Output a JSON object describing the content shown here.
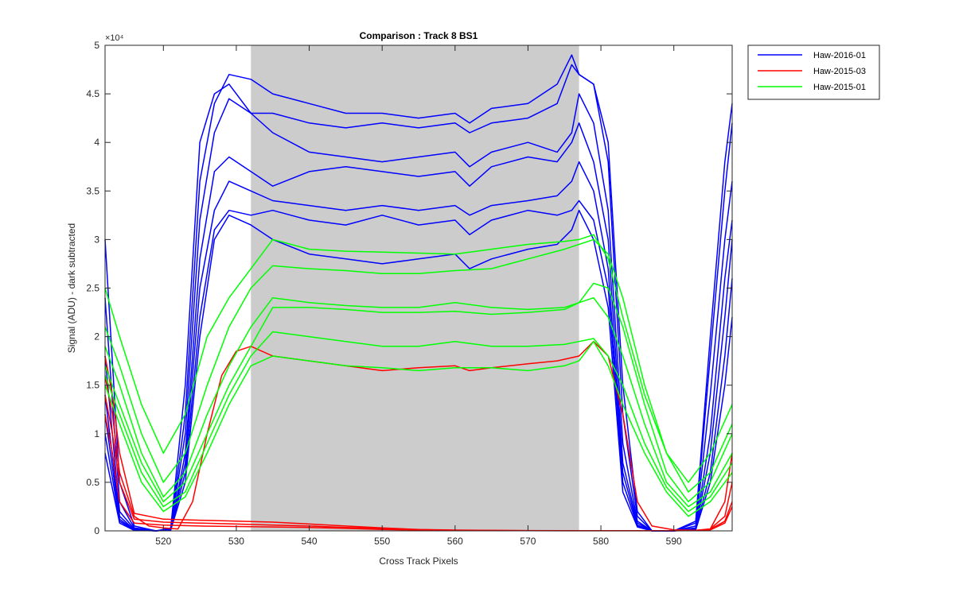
{
  "chart_data": {
    "type": "line",
    "title": "Comparison : Track 8  BS1",
    "xlabel": "Cross Track Pixels",
    "ylabel": "Signal (ADU) - dark subtracted",
    "y_exponent_label": "×10⁴",
    "xlim": [
      512,
      598
    ],
    "ylim": [
      0,
      50000
    ],
    "x_ticks": [
      520,
      530,
      540,
      550,
      560,
      570,
      580,
      590
    ],
    "y_ticks": [
      {
        "value": 0,
        "label": "0"
      },
      {
        "value": 5000,
        "label": "0.5"
      },
      {
        "value": 10000,
        "label": "1"
      },
      {
        "value": 15000,
        "label": "1.5"
      },
      {
        "value": 20000,
        "label": "2"
      },
      {
        "value": 25000,
        "label": "2.5"
      },
      {
        "value": 30000,
        "label": "3"
      },
      {
        "value": 35000,
        "label": "3.5"
      },
      {
        "value": 40000,
        "label": "4"
      },
      {
        "value": 45000,
        "label": "4.5"
      },
      {
        "value": 50000,
        "label": "5"
      }
    ],
    "shaded_region": {
      "x0": 532,
      "x1": 577,
      "color": "#cccccc"
    },
    "legend_position": "outside-top-right",
    "series": [
      {
        "name": "Haw-2016-01",
        "color": "#0000ff",
        "x": [
          512,
          514,
          516,
          519,
          521,
          523,
          525,
          527,
          529,
          532,
          535,
          540,
          545,
          550,
          555,
          560,
          562,
          565,
          570,
          574,
          576,
          577,
          579,
          581,
          583,
          585,
          587,
          590,
          593,
          595,
          597,
          598
        ],
        "y": [
          30000,
          5000,
          500,
          0,
          300,
          15000,
          40000,
          45000,
          46000,
          43000,
          43000,
          42000,
          41500,
          42000,
          41500,
          42000,
          41000,
          42000,
          42500,
          44000,
          48000,
          47000,
          46000,
          40000,
          15000,
          2000,
          0,
          0,
          1000,
          20000,
          38000,
          44000
        ]
      },
      {
        "name": "",
        "color": "#0000ff",
        "x": [
          512,
          514,
          516,
          519,
          521,
          523,
          525,
          527,
          529,
          532,
          535,
          540,
          545,
          550,
          555,
          560,
          562,
          565,
          570,
          574,
          576,
          577,
          579,
          581,
          583,
          585,
          587,
          590,
          593,
          595,
          597,
          598
        ],
        "y": [
          24000,
          3000,
          300,
          0,
          200,
          12000,
          36000,
          44000,
          47000,
          46500,
          45000,
          44000,
          43000,
          43000,
          42500,
          43000,
          42000,
          43500,
          44000,
          46000,
          49000,
          47000,
          46000,
          38000,
          12000,
          1500,
          0,
          0,
          800,
          18000,
          35000,
          42000
        ]
      },
      {
        "name": "",
        "color": "#0000ff",
        "x": [
          512,
          514,
          516,
          519,
          521,
          523,
          525,
          527,
          529,
          532,
          535,
          540,
          545,
          550,
          555,
          560,
          562,
          565,
          570,
          574,
          576,
          577,
          579,
          581,
          583,
          585,
          587,
          590,
          593,
          595,
          597,
          598
        ],
        "y": [
          18000,
          2000,
          200,
          0,
          150,
          10000,
          32000,
          41000,
          44500,
          43000,
          41000,
          39000,
          38500,
          38000,
          38500,
          39000,
          37500,
          39000,
          40000,
          39000,
          41000,
          45000,
          42000,
          33000,
          9000,
          1000,
          0,
          0,
          500,
          14000,
          30000,
          36000
        ]
      },
      {
        "name": "",
        "color": "#0000ff",
        "x": [
          512,
          514,
          516,
          519,
          521,
          523,
          525,
          527,
          529,
          532,
          535,
          540,
          545,
          550,
          555,
          560,
          562,
          565,
          570,
          574,
          576,
          577,
          579,
          581,
          583,
          585,
          587,
          590,
          593,
          595,
          597,
          598
        ],
        "y": [
          14000,
          1500,
          100,
          0,
          100,
          8000,
          28000,
          37000,
          38500,
          37000,
          35500,
          37000,
          37500,
          37000,
          36500,
          37000,
          35500,
          37500,
          38500,
          38000,
          40000,
          42000,
          38000,
          30000,
          7000,
          800,
          0,
          0,
          300,
          10000,
          26000,
          32000
        ]
      },
      {
        "name": "",
        "color": "#0000ff",
        "x": [
          512,
          514,
          516,
          519,
          521,
          523,
          525,
          527,
          529,
          532,
          535,
          540,
          545,
          550,
          555,
          560,
          562,
          565,
          570,
          574,
          576,
          577,
          579,
          581,
          583,
          585,
          587,
          590,
          593,
          595,
          597,
          598
        ],
        "y": [
          12000,
          1200,
          100,
          0,
          100,
          7000,
          25000,
          33000,
          36000,
          35000,
          34000,
          33500,
          33000,
          33500,
          33000,
          33500,
          32500,
          33500,
          34000,
          34500,
          36000,
          38000,
          35000,
          27000,
          6000,
          600,
          0,
          0,
          200,
          8000,
          22000,
          30000
        ]
      },
      {
        "name": "",
        "color": "#0000ff",
        "x": [
          512,
          514,
          516,
          519,
          521,
          523,
          525,
          527,
          529,
          532,
          535,
          540,
          545,
          550,
          555,
          560,
          562,
          565,
          570,
          574,
          576,
          577,
          579,
          581,
          583,
          585,
          587,
          590,
          593,
          595,
          597,
          598
        ],
        "y": [
          10000,
          1000,
          100,
          0,
          100,
          6000,
          22000,
          31000,
          33000,
          32500,
          33000,
          32000,
          31500,
          32500,
          31500,
          32000,
          30500,
          32000,
          33000,
          32500,
          33000,
          34000,
          32000,
          25000,
          5000,
          500,
          0,
          0,
          200,
          6000,
          18000,
          26000
        ]
      },
      {
        "name": "",
        "color": "#0000ff",
        "x": [
          512,
          514,
          516,
          519,
          521,
          523,
          525,
          527,
          529,
          532,
          535,
          540,
          545,
          550,
          555,
          560,
          562,
          565,
          570,
          574,
          576,
          577,
          579,
          581,
          583,
          585,
          587,
          590,
          593,
          595,
          597,
          598
        ],
        "y": [
          8000,
          800,
          50,
          0,
          80,
          5000,
          20000,
          30000,
          32500,
          31500,
          30000,
          28500,
          28000,
          27500,
          28000,
          28500,
          27000,
          28000,
          29000,
          29500,
          31000,
          33000,
          30000,
          23000,
          4000,
          400,
          0,
          0,
          100,
          5000,
          15000,
          22000
        ]
      },
      {
        "name": "Haw-2015-03",
        "color": "#ff0000",
        "x": [
          512,
          513,
          514,
          516,
          518,
          520,
          522,
          524,
          526,
          528,
          530,
          532,
          535,
          540,
          545,
          550,
          555,
          560,
          562,
          565,
          570,
          574,
          577,
          579,
          581,
          583,
          585,
          587,
          590,
          593,
          595,
          597,
          598
        ],
        "y": [
          16000,
          12000,
          6000,
          1500,
          500,
          300,
          200,
          3000,
          10000,
          16000,
          18500,
          19000,
          18000,
          17500,
          17000,
          16500,
          16800,
          17000,
          16500,
          16800,
          17200,
          17500,
          18000,
          19500,
          18000,
          12000,
          3000,
          500,
          100,
          50,
          200,
          3000,
          8000
        ]
      },
      {
        "name": "",
        "color": "#ff0000",
        "x": [
          512,
          513,
          514,
          516,
          520,
          525,
          530,
          535,
          540,
          545,
          550,
          555,
          560,
          565,
          570,
          575,
          580,
          585,
          590,
          593,
          595,
          597,
          598
        ],
        "y": [
          18000,
          14000,
          8000,
          1800,
          1200,
          1100,
          1000,
          900,
          700,
          500,
          300,
          150,
          80,
          50,
          30,
          20,
          20,
          20,
          20,
          50,
          200,
          1500,
          5000
        ]
      },
      {
        "name": "",
        "color": "#ff0000",
        "x": [
          512,
          513,
          514,
          516,
          520,
          525,
          530,
          535,
          540,
          545,
          550,
          555,
          560,
          565,
          570,
          575,
          580,
          585,
          590,
          593,
          595,
          597,
          598
        ],
        "y": [
          14000,
          10000,
          5000,
          1200,
          900,
          800,
          700,
          600,
          500,
          350,
          250,
          120,
          60,
          40,
          25,
          15,
          15,
          15,
          15,
          40,
          150,
          1000,
          3000
        ]
      },
      {
        "name": "",
        "color": "#ff0000",
        "x": [
          512,
          513,
          514,
          516,
          520,
          525,
          530,
          535,
          540,
          545,
          550,
          555,
          560,
          565,
          570,
          575,
          580,
          585,
          590,
          593,
          595,
          597,
          598
        ],
        "y": [
          12000,
          8000,
          3000,
          800,
          600,
          500,
          450,
          400,
          350,
          250,
          150,
          80,
          40,
          30,
          20,
          10,
          10,
          10,
          10,
          30,
          100,
          800,
          2500
        ]
      },
      {
        "name": "Haw-2015-01",
        "color": "#00ff00",
        "x": [
          512,
          514,
          517,
          520,
          523,
          526,
          529,
          532,
          535,
          540,
          545,
          550,
          555,
          560,
          565,
          570,
          575,
          577,
          579,
          581,
          583,
          586,
          589,
          592,
          595,
          598
        ],
        "y": [
          25000,
          20000,
          13000,
          8000,
          12000,
          20000,
          24000,
          27000,
          30000,
          29000,
          28800,
          28700,
          28600,
          28500,
          29000,
          29500,
          29800,
          30000,
          30500,
          28000,
          22000,
          14000,
          8000,
          5000,
          8000,
          13000
        ]
      },
      {
        "name": "",
        "color": "#00ff00",
        "x": [
          512,
          514,
          517,
          520,
          523,
          526,
          529,
          532,
          535,
          540,
          545,
          550,
          555,
          560,
          565,
          570,
          575,
          577,
          579,
          581,
          583,
          586,
          589,
          592,
          595,
          598
        ],
        "y": [
          21000,
          17000,
          10000,
          5000,
          8000,
          15000,
          21000,
          25000,
          27300,
          27000,
          26800,
          26500,
          26500,
          26800,
          27000,
          28000,
          29000,
          29500,
          30000,
          28500,
          24000,
          15000,
          8000,
          4000,
          6000,
          11000
        ]
      },
      {
        "name": "",
        "color": "#00ff00",
        "x": [
          512,
          514,
          517,
          520,
          523,
          526,
          529,
          532,
          535,
          540,
          545,
          550,
          555,
          560,
          565,
          570,
          575,
          577,
          579,
          581,
          583,
          586,
          589,
          592,
          595,
          598
        ],
        "y": [
          19000,
          15000,
          8000,
          3500,
          6000,
          12000,
          17000,
          21000,
          24000,
          23500,
          23200,
          23000,
          23000,
          23500,
          23000,
          22800,
          23000,
          23500,
          25500,
          25000,
          21000,
          13000,
          6000,
          3000,
          5000,
          10000
        ]
      },
      {
        "name": "",
        "color": "#00ff00",
        "x": [
          512,
          514,
          517,
          520,
          523,
          526,
          529,
          532,
          535,
          540,
          545,
          550,
          555,
          560,
          565,
          570,
          575,
          577,
          579,
          581,
          583,
          586,
          589,
          592,
          595,
          598
        ],
        "y": [
          17000,
          13000,
          7000,
          3000,
          5000,
          10000,
          15000,
          19000,
          23000,
          23000,
          22800,
          22500,
          22500,
          22600,
          22300,
          22500,
          22800,
          23500,
          24000,
          22000,
          18000,
          11000,
          5000,
          2500,
          4000,
          8000
        ]
      },
      {
        "name": "",
        "color": "#00ff00",
        "x": [
          512,
          514,
          517,
          520,
          523,
          526,
          529,
          532,
          535,
          540,
          545,
          550,
          555,
          560,
          565,
          570,
          575,
          577,
          579,
          581,
          583,
          586,
          589,
          592,
          595,
          598
        ],
        "y": [
          16000,
          12000,
          6000,
          2500,
          4000,
          9000,
          14000,
          18000,
          20500,
          20000,
          19500,
          19000,
          19000,
          19500,
          19000,
          19000,
          19200,
          19500,
          19800,
          18000,
          15000,
          9000,
          4500,
          2000,
          3500,
          7000
        ]
      },
      {
        "name": "",
        "color": "#00ff00",
        "x": [
          512,
          514,
          517,
          520,
          523,
          526,
          529,
          532,
          535,
          540,
          545,
          550,
          555,
          560,
          565,
          570,
          575,
          577,
          579,
          581,
          583,
          586,
          589,
          592,
          595,
          598
        ],
        "y": [
          15000,
          11000,
          5000,
          2000,
          3500,
          8000,
          13000,
          17000,
          18000,
          17500,
          17000,
          16800,
          16500,
          16800,
          16800,
          16500,
          17000,
          17500,
          19500,
          17000,
          13000,
          8000,
          4000,
          1500,
          3000,
          6000
        ]
      }
    ]
  }
}
